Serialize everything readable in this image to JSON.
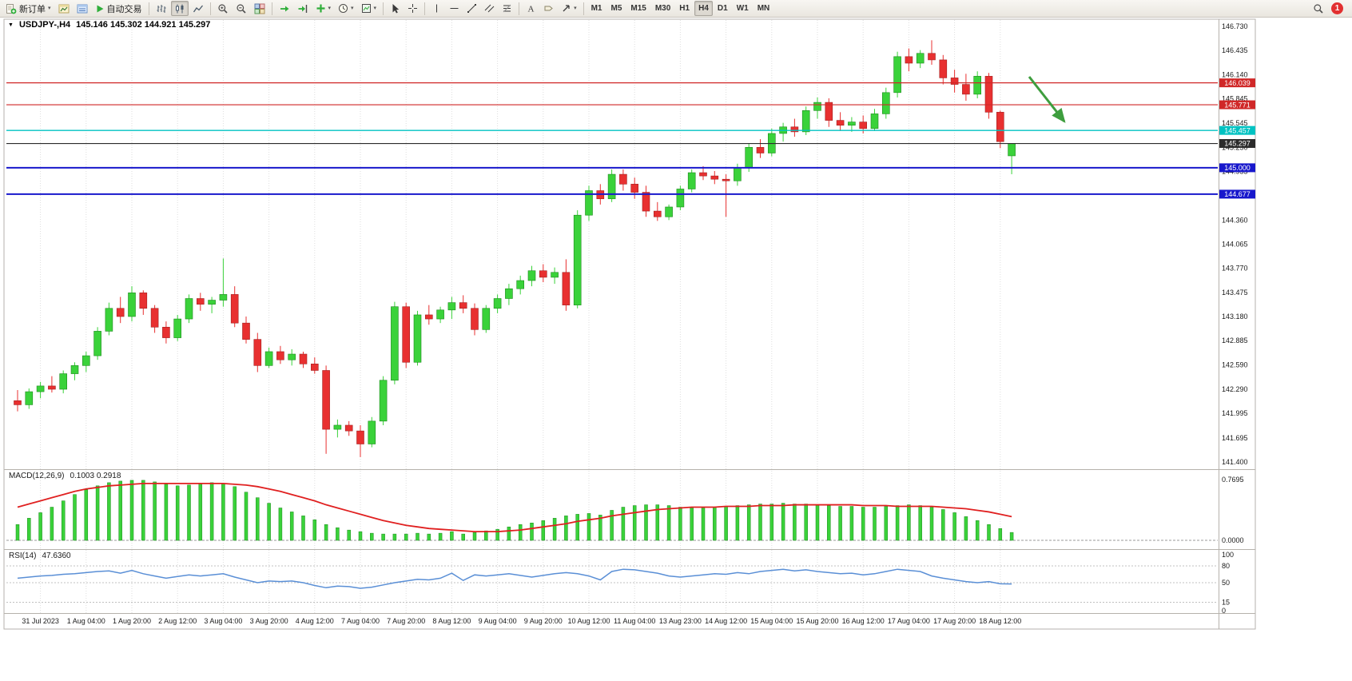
{
  "toolbar": {
    "new_order": "新订单",
    "autotrading": "自动交易",
    "timeframes": [
      "M1",
      "M5",
      "M15",
      "M30",
      "H1",
      "H4",
      "D1",
      "W1",
      "MN"
    ],
    "active_timeframe": "H4",
    "notification_count": "1"
  },
  "chart_header": {
    "marker": "▼",
    "symbol": "USDJPY-,H4",
    "ohlc": "145.146 145.302 144.921 145.297"
  },
  "price_axis": [
    "146.730",
    "146.435",
    "146.140",
    "145.845",
    "145.545",
    "145.250",
    "144.955",
    "144.660",
    "144.360",
    "144.065",
    "143.770",
    "143.475",
    "143.180",
    "142.885",
    "142.590",
    "142.290",
    "141.995",
    "141.695",
    "141.400"
  ],
  "time_axis": [
    "31 Jul 2023",
    "1 Aug 04:00",
    "1 Aug 20:00",
    "2 Aug 12:00",
    "3 Aug 04:00",
    "3 Aug 20:00",
    "4 Aug 12:00",
    "7 Aug 04:00",
    "7 Aug 20:00",
    "8 Aug 12:00",
    "9 Aug 04:00",
    "9 Aug 20:00",
    "10 Aug 12:00",
    "11 Aug 04:00",
    "13 Aug 23:00",
    "14 Aug 12:00",
    "15 Aug 04:00",
    "15 Aug 20:00",
    "16 Aug 12:00",
    "17 Aug 04:00",
    "17 Aug 20:00",
    "18 Aug 12:00"
  ],
  "levels": [
    {
      "label": "146.039",
      "value": 146.039,
      "color": "#d02828",
      "thickness": 1.2
    },
    {
      "label": "145.771",
      "value": 145.771,
      "color": "#d02828",
      "thickness": 1.2
    },
    {
      "label": "145.457",
      "value": 145.457,
      "color": "#00c2c2",
      "thickness": 1.4
    },
    {
      "label": "145.297",
      "value": 145.297,
      "color": "#2b2b2b",
      "thickness": 1.1,
      "role": "current-price"
    },
    {
      "label": "145.000",
      "value": 145.0,
      "color": "#1818cc",
      "thickness": 2
    },
    {
      "label": "144.677",
      "value": 144.677,
      "color": "#1818cc",
      "thickness": 2
    }
  ],
  "chart_data": {
    "type": "candlestick",
    "title": "USDJPY H4",
    "price_range": [
      141.4,
      146.73
    ],
    "ohlc_current": {
      "open": 145.146,
      "high": 145.302,
      "low": 144.921,
      "close": 145.297
    },
    "colors": {
      "bull": "#3ad23a",
      "bear": "#e83030"
    },
    "candles": [
      [
        142.15,
        142.28,
        142.02,
        142.1
      ],
      [
        142.1,
        142.3,
        142.05,
        142.26
      ],
      [
        142.26,
        142.38,
        142.18,
        142.33
      ],
      [
        142.33,
        142.45,
        142.25,
        142.29
      ],
      [
        142.29,
        142.52,
        142.24,
        142.48
      ],
      [
        142.48,
        142.62,
        142.4,
        142.58
      ],
      [
        142.58,
        142.75,
        142.5,
        142.7
      ],
      [
        142.7,
        143.05,
        142.65,
        143.0
      ],
      [
        143.0,
        143.35,
        142.95,
        143.28
      ],
      [
        143.28,
        143.42,
        143.1,
        143.18
      ],
      [
        143.18,
        143.55,
        143.12,
        143.47
      ],
      [
        143.47,
        143.5,
        143.2,
        143.28
      ],
      [
        143.28,
        143.32,
        142.98,
        143.05
      ],
      [
        143.05,
        143.12,
        142.85,
        142.92
      ],
      [
        142.92,
        143.2,
        142.88,
        143.15
      ],
      [
        143.15,
        143.45,
        143.1,
        143.4
      ],
      [
        143.4,
        143.47,
        143.25,
        143.33
      ],
      [
        143.33,
        143.42,
        143.22,
        143.38
      ],
      [
        143.38,
        143.89,
        143.3,
        143.45
      ],
      [
        143.45,
        143.55,
        143.05,
        143.1
      ],
      [
        143.1,
        143.18,
        142.85,
        142.9
      ],
      [
        142.9,
        142.98,
        142.5,
        142.58
      ],
      [
        142.58,
        142.8,
        142.55,
        142.75
      ],
      [
        142.75,
        142.82,
        142.6,
        142.65
      ],
      [
        142.65,
        142.78,
        142.58,
        142.72
      ],
      [
        142.72,
        142.75,
        142.55,
        142.6
      ],
      [
        142.6,
        142.68,
        142.48,
        142.52
      ],
      [
        142.52,
        142.58,
        141.5,
        141.8
      ],
      [
        141.8,
        141.92,
        141.7,
        141.85
      ],
      [
        141.85,
        141.9,
        141.72,
        141.78
      ],
      [
        141.78,
        141.85,
        141.46,
        141.62
      ],
      [
        141.62,
        141.95,
        141.58,
        141.9
      ],
      [
        141.9,
        142.45,
        141.85,
        142.4
      ],
      [
        142.4,
        143.36,
        142.35,
        143.3
      ],
      [
        143.3,
        143.35,
        142.55,
        142.62
      ],
      [
        142.62,
        143.25,
        142.58,
        143.2
      ],
      [
        143.2,
        143.32,
        143.08,
        143.15
      ],
      [
        143.15,
        143.3,
        143.1,
        143.26
      ],
      [
        143.26,
        143.42,
        143.15,
        143.35
      ],
      [
        143.35,
        143.44,
        143.22,
        143.28
      ],
      [
        143.28,
        143.34,
        142.95,
        143.02
      ],
      [
        143.02,
        143.32,
        142.98,
        143.28
      ],
      [
        143.28,
        143.45,
        143.22,
        143.4
      ],
      [
        143.4,
        143.58,
        143.32,
        143.52
      ],
      [
        143.52,
        143.68,
        143.45,
        143.62
      ],
      [
        143.62,
        143.8,
        143.55,
        143.74
      ],
      [
        143.74,
        143.82,
        143.6,
        143.66
      ],
      [
        143.66,
        143.78,
        143.58,
        143.72
      ],
      [
        143.72,
        143.88,
        143.25,
        143.32
      ],
      [
        143.32,
        144.48,
        143.28,
        144.42
      ],
      [
        144.42,
        144.78,
        144.35,
        144.72
      ],
      [
        144.72,
        144.8,
        144.55,
        144.62
      ],
      [
        144.62,
        144.98,
        144.58,
        144.92
      ],
      [
        144.92,
        144.98,
        144.72,
        144.8
      ],
      [
        144.8,
        144.88,
        144.62,
        144.7
      ],
      [
        144.7,
        144.78,
        144.4,
        144.47
      ],
      [
        144.47,
        144.58,
        144.35,
        144.4
      ],
      [
        144.4,
        144.55,
        144.36,
        144.52
      ],
      [
        144.52,
        144.78,
        144.48,
        144.74
      ],
      [
        144.74,
        144.98,
        144.7,
        144.94
      ],
      [
        144.94,
        145.02,
        144.85,
        144.9
      ],
      [
        144.9,
        144.96,
        144.8,
        144.86
      ],
      [
        144.86,
        144.92,
        144.4,
        144.84
      ],
      [
        144.84,
        145.05,
        144.78,
        145.0
      ],
      [
        145.0,
        145.3,
        144.95,
        145.25
      ],
      [
        145.25,
        145.35,
        145.12,
        145.18
      ],
      [
        145.18,
        145.48,
        145.14,
        145.42
      ],
      [
        145.42,
        145.55,
        145.32,
        145.5
      ],
      [
        145.5,
        145.6,
        145.38,
        145.44
      ],
      [
        145.44,
        145.75,
        145.4,
        145.7
      ],
      [
        145.7,
        145.86,
        145.6,
        145.8
      ],
      [
        145.8,
        145.85,
        145.5,
        145.58
      ],
      [
        145.58,
        145.68,
        145.45,
        145.52
      ],
      [
        145.52,
        145.62,
        145.44,
        145.56
      ],
      [
        145.56,
        145.64,
        145.42,
        145.48
      ],
      [
        145.48,
        145.72,
        145.45,
        145.66
      ],
      [
        145.66,
        145.98,
        145.6,
        145.92
      ],
      [
        145.92,
        146.42,
        145.86,
        146.36
      ],
      [
        146.36,
        146.46,
        146.18,
        146.28
      ],
      [
        146.28,
        146.44,
        146.22,
        146.4
      ],
      [
        146.4,
        146.56,
        146.26,
        146.32
      ],
      [
        146.32,
        146.38,
        146.02,
        146.1
      ],
      [
        146.1,
        146.2,
        145.92,
        146.02
      ],
      [
        146.02,
        146.15,
        145.82,
        145.9
      ],
      [
        145.9,
        146.18,
        145.85,
        146.12
      ],
      [
        146.12,
        146.16,
        145.6,
        145.68
      ],
      [
        145.68,
        145.7,
        145.24,
        145.32
      ],
      [
        145.146,
        145.302,
        144.921,
        145.297
      ]
    ],
    "indicators": {
      "macd": {
        "label": "MACD(12,26,9)",
        "values": "0.1003 0.2918",
        "axis": [
          "0.7695",
          "0.0000"
        ],
        "histogram_color": "#3ad23a",
        "signal_color": "#e02020",
        "histogram": [
          0.2,
          0.28,
          0.35,
          0.42,
          0.5,
          0.58,
          0.64,
          0.69,
          0.73,
          0.75,
          0.76,
          0.76,
          0.74,
          0.71,
          0.69,
          0.7,
          0.72,
          0.73,
          0.72,
          0.68,
          0.61,
          0.54,
          0.47,
          0.41,
          0.36,
          0.31,
          0.26,
          0.2,
          0.16,
          0.13,
          0.11,
          0.09,
          0.08,
          0.08,
          0.08,
          0.09,
          0.08,
          0.09,
          0.11,
          0.08,
          0.1,
          0.12,
          0.14,
          0.17,
          0.2,
          0.22,
          0.25,
          0.28,
          0.31,
          0.33,
          0.34,
          0.32,
          0.38,
          0.42,
          0.44,
          0.45,
          0.45,
          0.44,
          0.42,
          0.41,
          0.41,
          0.42,
          0.43,
          0.44,
          0.45,
          0.46,
          0.46,
          0.47,
          0.46,
          0.46,
          0.45,
          0.44,
          0.43,
          0.43,
          0.42,
          0.42,
          0.43,
          0.44,
          0.45,
          0.44,
          0.42,
          0.39,
          0.35,
          0.3,
          0.25,
          0.2,
          0.15,
          0.1
        ],
        "signal": [
          0.42,
          0.46,
          0.5,
          0.54,
          0.58,
          0.62,
          0.65,
          0.67,
          0.69,
          0.7,
          0.71,
          0.72,
          0.72,
          0.72,
          0.72,
          0.72,
          0.72,
          0.72,
          0.72,
          0.71,
          0.7,
          0.68,
          0.65,
          0.62,
          0.58,
          0.54,
          0.5,
          0.45,
          0.41,
          0.37,
          0.33,
          0.29,
          0.25,
          0.22,
          0.19,
          0.17,
          0.15,
          0.14,
          0.13,
          0.12,
          0.11,
          0.11,
          0.11,
          0.12,
          0.13,
          0.15,
          0.17,
          0.19,
          0.21,
          0.24,
          0.26,
          0.28,
          0.31,
          0.33,
          0.35,
          0.37,
          0.39,
          0.4,
          0.41,
          0.42,
          0.42,
          0.42,
          0.43,
          0.43,
          0.43,
          0.44,
          0.44,
          0.44,
          0.45,
          0.45,
          0.45,
          0.45,
          0.45,
          0.45,
          0.44,
          0.44,
          0.44,
          0.43,
          0.43,
          0.43,
          0.43,
          0.42,
          0.41,
          0.4,
          0.38,
          0.36,
          0.33,
          0.3
        ]
      },
      "rsi": {
        "label": "RSI(14)",
        "value": "47.6360",
        "axis": [
          "100",
          "80",
          "50",
          "15",
          "0"
        ],
        "levels": [
          80,
          50,
          15
        ],
        "color": "#5a8fd6",
        "series": [
          58,
          60,
          62,
          63,
          65,
          66,
          68,
          70,
          71,
          67,
          72,
          66,
          62,
          58,
          61,
          64,
          62,
          64,
          66,
          60,
          55,
          50,
          53,
          52,
          53,
          50,
          45,
          41,
          44,
          43,
          40,
          42,
          46,
          50,
          53,
          56,
          55,
          58,
          67,
          54,
          64,
          62,
          64,
          66,
          63,
          60,
          63,
          66,
          68,
          66,
          62,
          55,
          70,
          74,
          73,
          70,
          67,
          62,
          60,
          62,
          64,
          66,
          65,
          68,
          66,
          70,
          72,
          74,
          71,
          73,
          70,
          68,
          66,
          67,
          64,
          66,
          70,
          74,
          72,
          70,
          62,
          58,
          55,
          52,
          50,
          52,
          48,
          47.6
        ]
      }
    },
    "annotations": [
      {
        "type": "arrow",
        "color": "#3e9e3e",
        "from": [
          1288,
          96
        ],
        "to": [
          1332,
          152
        ]
      }
    ]
  }
}
